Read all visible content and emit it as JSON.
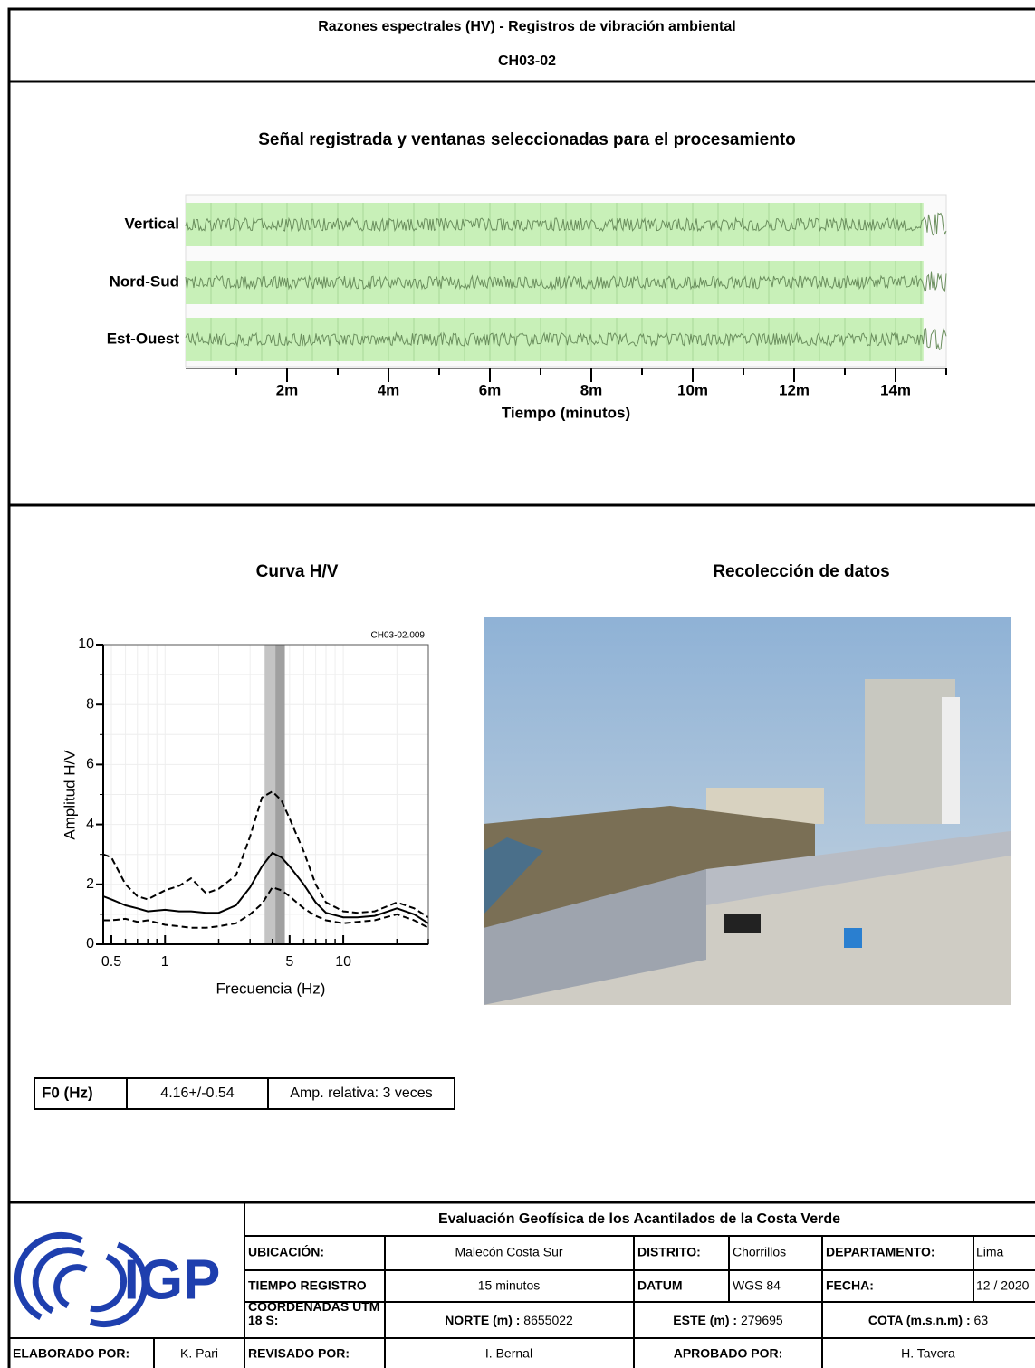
{
  "header": {
    "title": "Razones espectrales (HV) - Registros de vibración ambiental",
    "code": "CH03-02"
  },
  "signal_chart": {
    "type": "waveform",
    "title": "Señal registrada y ventanas seleccionadas para el procesamiento",
    "traces": [
      "Vertical",
      "Nord-Sud",
      "Est-Ouest"
    ],
    "xlim": [
      0,
      15
    ],
    "xticks": [
      {
        "value": 2,
        "label": "2m"
      },
      {
        "value": 4,
        "label": "4m"
      },
      {
        "value": 6,
        "label": "6m"
      },
      {
        "value": 8,
        "label": "8m"
      },
      {
        "value": 10,
        "label": "10m"
      },
      {
        "value": 12,
        "label": "12m"
      },
      {
        "value": 14,
        "label": "14m"
      }
    ],
    "xticks_minor": [
      1,
      3,
      5,
      7,
      9,
      11,
      13,
      15
    ],
    "x_label": "Tiempo (minutos)",
    "selected_range": [
      0,
      14.55
    ],
    "window_color": "#c8f0b8",
    "trace_color": "#6b8f5e"
  },
  "hv_chart": {
    "type": "line",
    "title": "Curva H/V",
    "file": "CH03-02.009",
    "x_label": "Frecuencia (Hz)",
    "y_label": "Amplitud H/V",
    "log_x": true,
    "grid": true,
    "xlim": [
      0.45,
      30
    ],
    "ylim": [
      0,
      10
    ],
    "xticks": [
      0.5,
      1,
      5,
      10
    ],
    "xticks_minor": [
      0.6,
      0.7,
      0.8,
      0.9,
      2,
      3,
      4,
      6,
      7,
      8,
      9,
      20,
      30
    ],
    "yticks": [
      0,
      2,
      4,
      6,
      8,
      10
    ],
    "yticks_minor": [
      1,
      3,
      5,
      7,
      9
    ],
    "f0": 4.16,
    "f0_std": 0.54,
    "x": [
      0.45,
      0.5,
      0.6,
      0.7,
      0.8,
      1,
      1.2,
      1.4,
      1.7,
      2,
      2.5,
      3,
      3.5,
      4,
      4.5,
      5,
      6,
      7,
      8,
      10,
      12,
      15,
      20,
      25,
      30
    ],
    "series": [
      {
        "color": "#000000",
        "dashed": false,
        "values": [
          1.6,
          1.5,
          1.3,
          1.2,
          1.1,
          1.15,
          1.1,
          1.1,
          1.05,
          1.05,
          1.3,
          1.9,
          2.6,
          3.05,
          2.9,
          2.6,
          2.0,
          1.4,
          1.05,
          0.9,
          0.9,
          0.95,
          1.2,
          1.0,
          0.7
        ]
      },
      {
        "color": "#000000",
        "dashed": true,
        "values": [
          3.0,
          2.9,
          2.0,
          1.6,
          1.5,
          1.8,
          1.95,
          2.2,
          1.7,
          1.85,
          2.3,
          3.6,
          4.9,
          5.1,
          4.8,
          4.2,
          3.1,
          2.0,
          1.4,
          1.1,
          1.05,
          1.1,
          1.4,
          1.2,
          0.9
        ]
      },
      {
        "color": "#000000",
        "dashed": true,
        "values": [
          0.8,
          0.8,
          0.85,
          0.75,
          0.8,
          0.65,
          0.6,
          0.55,
          0.55,
          0.6,
          0.7,
          1.0,
          1.35,
          1.9,
          1.8,
          1.6,
          1.2,
          0.95,
          0.8,
          0.7,
          0.75,
          0.8,
          1.0,
          0.8,
          0.55
        ]
      }
    ]
  },
  "photo": {
    "title": "Recolección de datos"
  },
  "result": {
    "label": "F0 (Hz)",
    "value": "4.16+/-0.54",
    "amplitude": "Amp. relativa: 3 veces"
  },
  "footer": {
    "logo": "IGP",
    "project": "Evaluación Geofísica de los Acantilados de la Costa Verde",
    "ubicacion": [
      "UBICACIÓN:",
      "Malecón Costa Sur"
    ],
    "distrito": [
      "DISTRITO:",
      "Chorrillos"
    ],
    "departamento": [
      "DEPARTAMENTO:",
      "Lima"
    ],
    "tiempo": [
      "TIEMPO REGISTRO",
      "15 minutos"
    ],
    "datum": [
      "DATUM",
      "WGS 84"
    ],
    "fecha": [
      "FECHA:",
      "12 / 2020"
    ],
    "coordenadas": "COORDENADAS UTM 18 S:",
    "norte": [
      "NORTE (m) :",
      "8655022"
    ],
    "este": [
      "ESTE (m) :",
      "279695"
    ],
    "cota": [
      "COTA (m.s.n.m) :",
      "63"
    ],
    "elaborado": [
      "ELABORADO POR:",
      "K. Pari"
    ],
    "revisado": [
      "REVISADO POR:",
      "I. Bernal"
    ],
    "aprobado": [
      "APROBADO POR:",
      "H. Tavera"
    ]
  }
}
